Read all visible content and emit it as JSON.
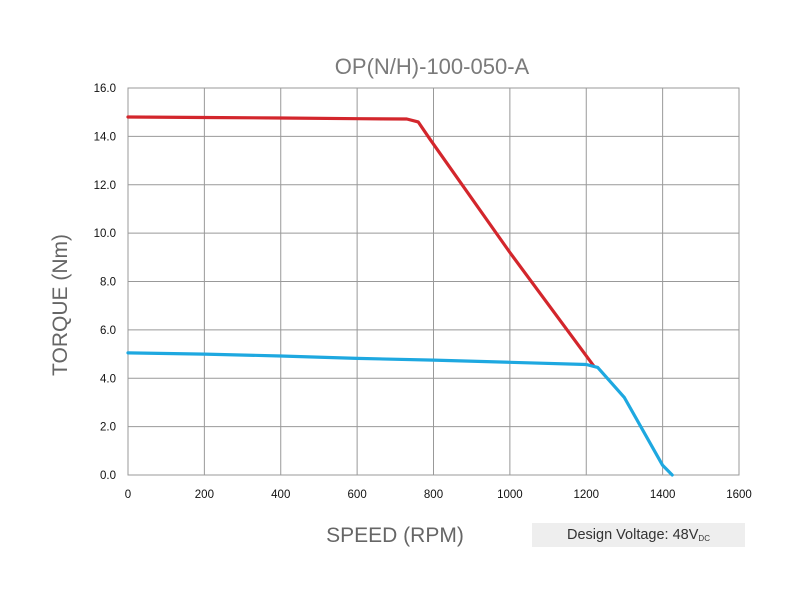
{
  "chart_data": {
    "type": "line",
    "title": "OP(N/H)-100-050-A",
    "xlabel": "SPEED (RPM)",
    "ylabel": "TORQUE (Nm)",
    "xlim": [
      0,
      1600
    ],
    "ylim": [
      0,
      16
    ],
    "x_ticks": [
      "0",
      "200",
      "400",
      "600",
      "800",
      "1000",
      "1200",
      "1400",
      "1600"
    ],
    "y_ticks": [
      "0.0",
      "2.0",
      "4.0",
      "6.0",
      "8.0",
      "10.0",
      "12.0",
      "14.0",
      "16.0"
    ],
    "grid": true,
    "series": [
      {
        "color": "#d3262c",
        "points": [
          [
            0,
            14.8
          ],
          [
            200,
            14.78
          ],
          [
            400,
            14.76
          ],
          [
            600,
            14.73
          ],
          [
            730,
            14.72
          ],
          [
            760,
            14.6
          ],
          [
            790,
            13.9
          ],
          [
            1000,
            9.2
          ],
          [
            1220,
            4.5
          ]
        ]
      },
      {
        "color": "#1ea8e0",
        "points": [
          [
            0,
            5.05
          ],
          [
            200,
            5.0
          ],
          [
            400,
            4.92
          ],
          [
            600,
            4.82
          ],
          [
            800,
            4.75
          ],
          [
            1000,
            4.66
          ],
          [
            1200,
            4.57
          ],
          [
            1230,
            4.45
          ],
          [
            1300,
            3.2
          ],
          [
            1400,
            0.4
          ],
          [
            1425,
            0.0
          ]
        ]
      }
    ],
    "annotation": {
      "text": "Design Voltage: 48V",
      "subscript": "DC"
    }
  }
}
